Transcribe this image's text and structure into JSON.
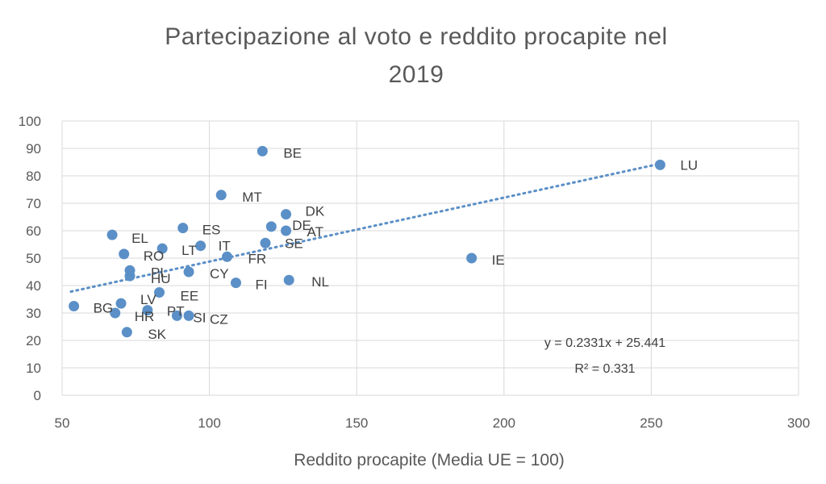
{
  "chart_data": {
    "type": "scatter",
    "title_lines": [
      "Partecipazione al voto e reddito procapite nel",
      "2019"
    ],
    "xlabel": "Reddito procapite (Media UE = 100)",
    "ylabel": "",
    "xlim": [
      50,
      300
    ],
    "ylim": [
      0,
      100
    ],
    "xticks": [
      50,
      100,
      150,
      200,
      250,
      300
    ],
    "yticks": [
      0,
      10,
      20,
      30,
      40,
      50,
      60,
      70,
      80,
      90,
      100
    ],
    "grid": true,
    "marker_color": "#5b8fc7",
    "trendline": {
      "type": "linear",
      "slope": 0.2331,
      "intercept": 25.441,
      "style": "dotted",
      "x_range": [
        53,
        253
      ],
      "equation": "y = 0.2331x  + 25.441",
      "r2_label": "R² = 0.331"
    },
    "points": [
      {
        "label": "LU",
        "x": 253,
        "y": 84
      },
      {
        "label": "IE",
        "x": 189,
        "y": 50
      },
      {
        "label": "BE",
        "x": 118,
        "y": 89
      },
      {
        "label": "MT",
        "x": 104,
        "y": 73
      },
      {
        "label": "DK",
        "x": 126,
        "y": 66
      },
      {
        "label": "DE",
        "x": 121,
        "y": 61.5
      },
      {
        "label": "AT",
        "x": 126,
        "y": 60
      },
      {
        "label": "SE",
        "x": 119,
        "y": 55.5
      },
      {
        "label": "NL",
        "x": 127,
        "y": 42
      },
      {
        "label": "FI",
        "x": 109,
        "y": 41
      },
      {
        "label": "FR",
        "x": 106,
        "y": 50.5
      },
      {
        "label": "IT",
        "x": 97,
        "y": 54.5
      },
      {
        "label": "ES",
        "x": 91,
        "y": 61
      },
      {
        "label": "LT",
        "x": 84,
        "y": 53.5
      },
      {
        "label": "CY",
        "x": 93,
        "y": 45
      },
      {
        "label": "EE",
        "x": 83,
        "y": 37.5
      },
      {
        "label": "EL",
        "x": 67,
        "y": 58.5
      },
      {
        "label": "RO",
        "x": 71,
        "y": 51.5
      },
      {
        "label": "PL",
        "x": 73,
        "y": 45.5
      },
      {
        "label": "HU",
        "x": 73,
        "y": 43.5
      },
      {
        "label": "LV",
        "x": 70,
        "y": 33.5
      },
      {
        "label": "HR",
        "x": 68,
        "y": 30
      },
      {
        "label": "BG",
        "x": 54,
        "y": 32.5
      },
      {
        "label": "PT",
        "x": 79,
        "y": 31
      },
      {
        "label": "SI",
        "x": 89,
        "y": 29
      },
      {
        "label": "CZ",
        "x": 93,
        "y": 29
      },
      {
        "label": "SK",
        "x": 72,
        "y": 23
      }
    ]
  }
}
